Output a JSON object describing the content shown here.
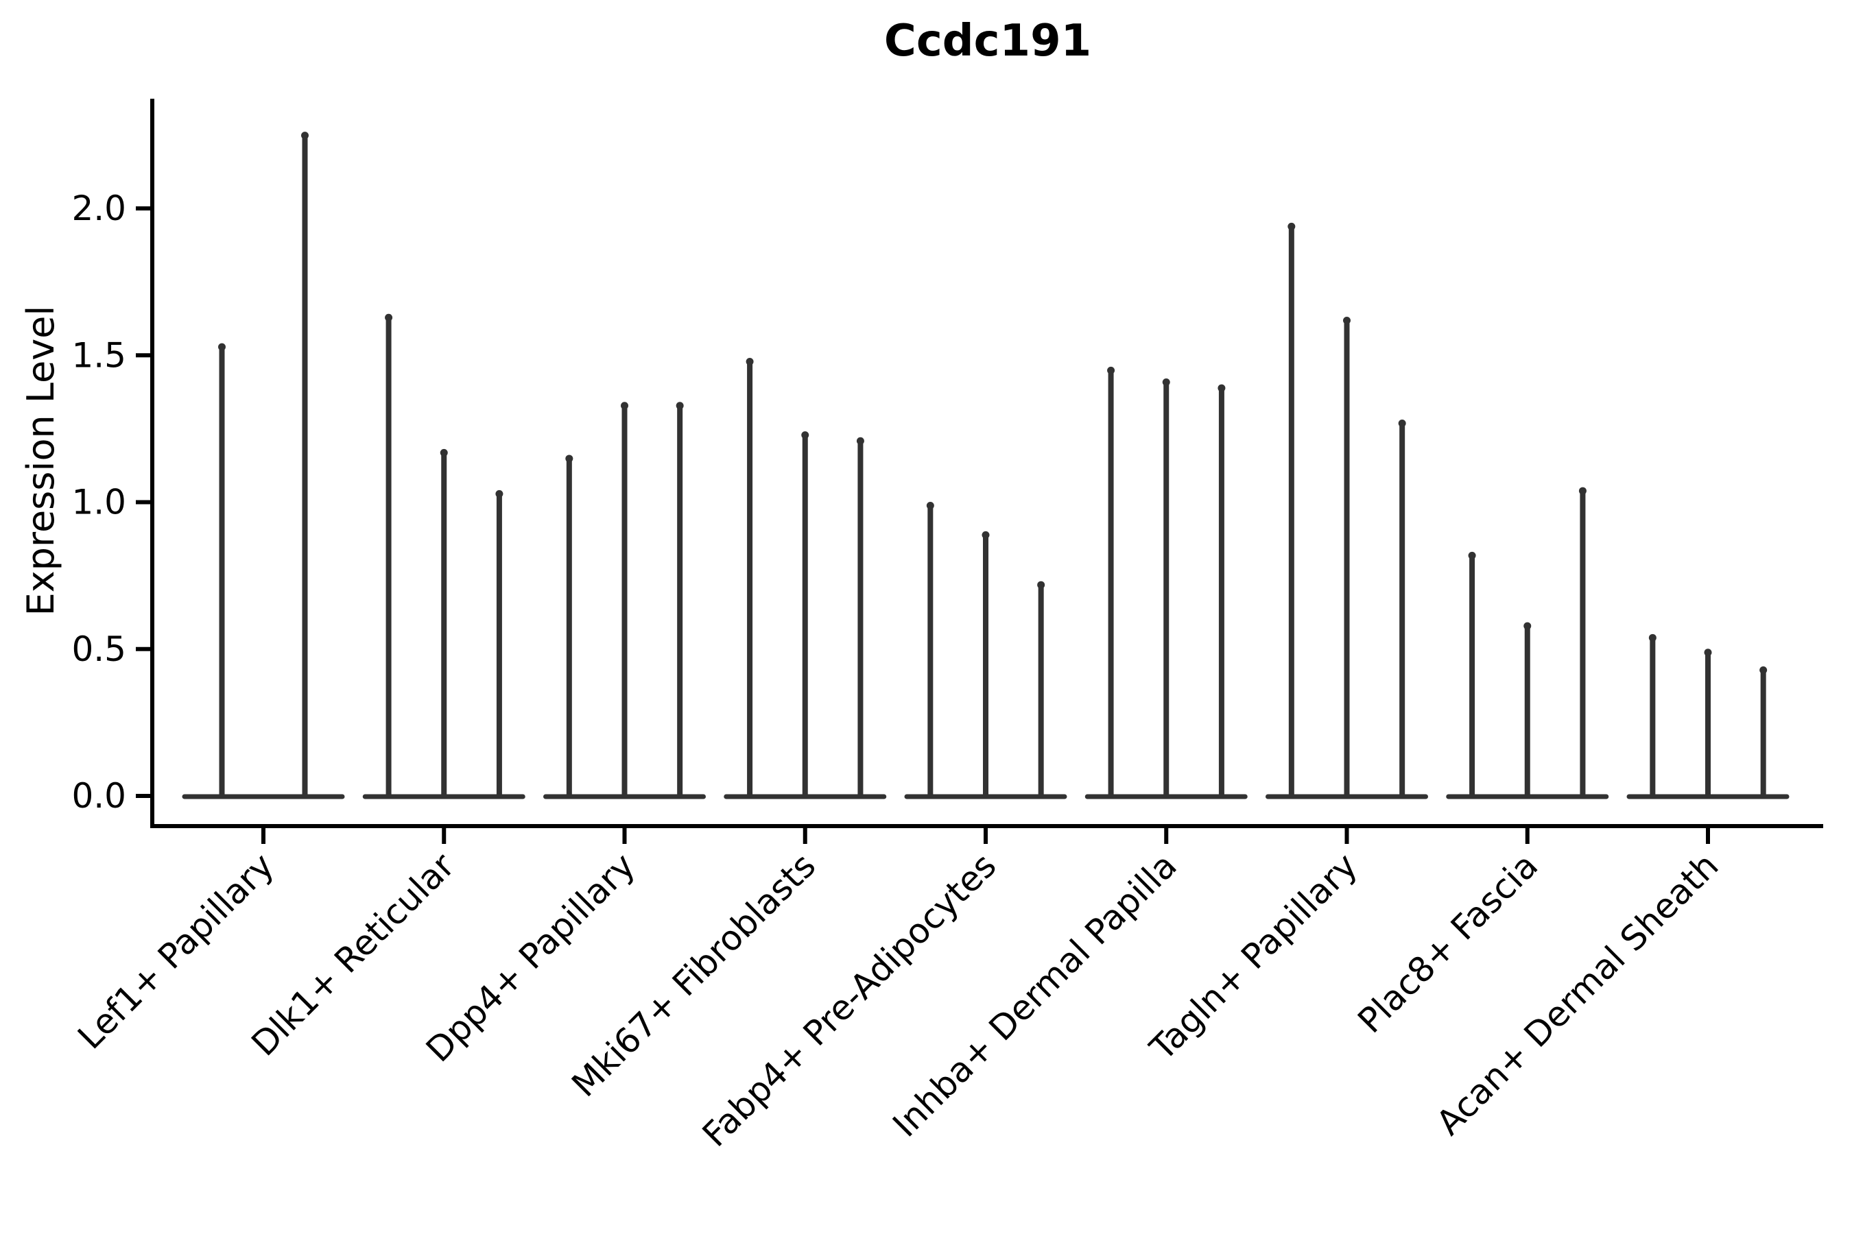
{
  "chart_data": {
    "type": "violin",
    "title": "Ccdc191",
    "ylabel": "Expression Level",
    "xlabel": "",
    "ylim": [
      -0.1,
      2.37
    ],
    "yticks": [
      "0.0",
      "0.5",
      "1.0",
      "1.5",
      "2.0"
    ],
    "legend": "none",
    "grid": false,
    "violin_color": "#323232",
    "axis_color": "#000000",
    "background_color": "#ffffff",
    "groups": [
      {
        "label": "Lef1+ Papillary",
        "values": [
          1.54,
          2.26
        ]
      },
      {
        "label": "Dlk1+ Reticular",
        "values": [
          1.64,
          1.18,
          1.04
        ]
      },
      {
        "label": "Dpp4+ Papillary",
        "values": [
          1.16,
          1.34,
          1.34
        ]
      },
      {
        "label": "Mki67+ Fibroblasts",
        "values": [
          1.49,
          1.24,
          1.22
        ]
      },
      {
        "label": "Fabp4+ Pre-Adipocytes",
        "values": [
          1.0,
          0.9,
          0.73
        ]
      },
      {
        "label": "Inhba+ Dermal Papilla",
        "values": [
          1.46,
          1.42,
          1.4
        ]
      },
      {
        "label": "Tagln+ Papillary",
        "values": [
          1.95,
          1.63,
          1.28
        ]
      },
      {
        "label": "Plac8+ Fascia",
        "values": [
          0.83,
          0.59,
          1.05
        ]
      },
      {
        "label": "Acan+ Dermal Sheath",
        "values": [
          0.55,
          0.5,
          0.44
        ]
      }
    ]
  }
}
